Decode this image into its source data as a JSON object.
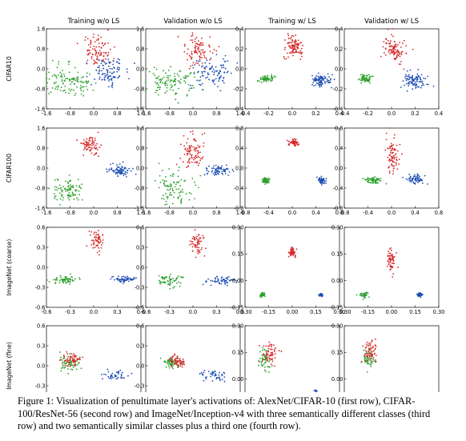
{
  "figure": {
    "column_titles": [
      "Training w/o LS",
      "Validation w/o LS",
      "Training w/ LS",
      "Validation w/ LS"
    ],
    "row_labels": [
      "CIFAR10",
      "CIFAR100",
      "ImageNet (coarse)",
      "ImageNet (fine)"
    ],
    "class_colors": {
      "red": "#d62728",
      "green": "#2ca02c",
      "blue": "#1f4fb4"
    },
    "caption": "Figure 1: Visualization of penultimate layer's activations of: AlexNet/CIFAR-10 (first row), CIFAR-100/ResNet-56 (second row) and ImageNet/Inception-v4 with three semantically different classes (third row) and two semantically similar classes plus a third one (fourth row)."
  },
  "chart_data": [
    {
      "type": "scatter",
      "row": "CIFAR10",
      "column": "Training w/o LS",
      "xlim": [
        -1.6,
        1.6
      ],
      "ylim": [
        -1.6,
        1.6
      ],
      "xticks": [
        "-1.6",
        "-0.8",
        "0.0",
        "0.8",
        "1.6"
      ],
      "yticks": [
        "1.6",
        "0.8",
        "0.0",
        "-0.8",
        "-1.6"
      ],
      "clusters": [
        {
          "color": "red",
          "cx": 0.1,
          "cy": 0.7,
          "sx": 0.25,
          "sy": 0.35,
          "n": 90
        },
        {
          "color": "blue",
          "cx": 0.5,
          "cy": -0.1,
          "sx": 0.3,
          "sy": 0.25,
          "n": 100
        },
        {
          "color": "green",
          "cx": -0.9,
          "cy": -0.5,
          "sx": 0.45,
          "sy": 0.3,
          "n": 120
        }
      ]
    },
    {
      "type": "scatter",
      "row": "CIFAR10",
      "column": "Validation w/o LS",
      "xlim": [
        -1.6,
        1.6
      ],
      "ylim": [
        -1.6,
        1.6
      ],
      "xticks": [
        "-1.6",
        "-0.8",
        "0.0",
        "0.8",
        "1.6"
      ],
      "yticks": [
        "1.6",
        "0.8",
        "0.0",
        "-0.8",
        "-1.6"
      ],
      "clusters": [
        {
          "color": "red",
          "cx": 0.15,
          "cy": 0.7,
          "sx": 0.25,
          "sy": 0.35,
          "n": 90
        },
        {
          "color": "blue",
          "cx": 0.7,
          "cy": -0.15,
          "sx": 0.35,
          "sy": 0.3,
          "n": 100
        },
        {
          "color": "green",
          "cx": -0.8,
          "cy": -0.5,
          "sx": 0.45,
          "sy": 0.3,
          "n": 110
        }
      ]
    },
    {
      "type": "scatter",
      "row": "CIFAR10",
      "column": "Training w/ LS",
      "xlim": [
        -0.4,
        0.4
      ],
      "ylim": [
        -0.4,
        0.4
      ],
      "xticks": [
        "-0.4",
        "-0.2",
        "0.0",
        "0.2",
        "0.4"
      ],
      "yticks": [
        "0.4",
        "0.2",
        "0.0",
        "-0.2",
        "-0.4"
      ],
      "clusters": [
        {
          "color": "red",
          "cx": 0.02,
          "cy": 0.22,
          "sx": 0.04,
          "sy": 0.05,
          "n": 100
        },
        {
          "color": "blue",
          "cx": 0.24,
          "cy": -0.12,
          "sx": 0.04,
          "sy": 0.03,
          "n": 90
        },
        {
          "color": "green",
          "cx": -0.22,
          "cy": -0.1,
          "sx": 0.03,
          "sy": 0.02,
          "n": 60
        }
      ]
    },
    {
      "type": "scatter",
      "row": "CIFAR10",
      "column": "Validation w/ LS",
      "xlim": [
        -0.4,
        0.4
      ],
      "ylim": [
        -0.4,
        0.4
      ],
      "xticks": [
        "-0.4",
        "-0.2",
        "0.0",
        "0.2",
        "0.4"
      ],
      "yticks": [
        "0.4",
        "0.2",
        "0.0",
        "-0.2",
        "-0.4"
      ],
      "clusters": [
        {
          "color": "red",
          "cx": 0.02,
          "cy": 0.2,
          "sx": 0.05,
          "sy": 0.07,
          "n": 100
        },
        {
          "color": "blue",
          "cx": 0.2,
          "cy": -0.12,
          "sx": 0.05,
          "sy": 0.04,
          "n": 90
        },
        {
          "color": "green",
          "cx": -0.22,
          "cy": -0.1,
          "sx": 0.03,
          "sy": 0.02,
          "n": 60
        }
      ]
    },
    {
      "type": "scatter",
      "row": "CIFAR100",
      "column": "Training w/o LS",
      "xlim": [
        -1.6,
        1.6
      ],
      "ylim": [
        -1.6,
        1.6
      ],
      "xticks": [
        "-1.6",
        "-0.8",
        "0.0",
        "0.8",
        "1.6"
      ],
      "yticks": [
        "1.6",
        "0.8",
        "0.0",
        "-0.8",
        "-1.6"
      ],
      "clusters": [
        {
          "color": "red",
          "cx": -0.1,
          "cy": 0.9,
          "sx": 0.15,
          "sy": 0.2,
          "n": 80
        },
        {
          "color": "blue",
          "cx": 0.9,
          "cy": -0.1,
          "sx": 0.2,
          "sy": 0.12,
          "n": 80
        },
        {
          "color": "green",
          "cx": -0.9,
          "cy": -0.9,
          "sx": 0.25,
          "sy": 0.25,
          "n": 90
        }
      ]
    },
    {
      "type": "scatter",
      "row": "CIFAR100",
      "column": "Validation w/o LS",
      "xlim": [
        -1.6,
        1.6
      ],
      "ylim": [
        -1.6,
        1.6
      ],
      "xticks": [
        "-1.6",
        "-0.8",
        "0.0",
        "0.8",
        "1.6"
      ],
      "yticks": [
        "1.6",
        "0.8",
        "0.0",
        "-0.8",
        "-1.6"
      ],
      "clusters": [
        {
          "color": "red",
          "cx": 0.0,
          "cy": 0.6,
          "sx": 0.2,
          "sy": 0.35,
          "n": 90
        },
        {
          "color": "blue",
          "cx": 0.9,
          "cy": -0.1,
          "sx": 0.25,
          "sy": 0.12,
          "n": 70
        },
        {
          "color": "green",
          "cx": -0.6,
          "cy": -0.8,
          "sx": 0.35,
          "sy": 0.3,
          "n": 90
        }
      ]
    },
    {
      "type": "scatter",
      "row": "CIFAR100",
      "column": "Training w/ LS",
      "xlim": [
        -0.8,
        0.8
      ],
      "ylim": [
        -0.8,
        0.8
      ],
      "xticks": [
        "-0.8",
        "-0.4",
        "0.0",
        "0.4",
        "0.8"
      ],
      "yticks": [
        "0.8",
        "0.4",
        "0.0",
        "-0.4",
        "-0.8"
      ],
      "clusters": [
        {
          "color": "red",
          "cx": 0.02,
          "cy": 0.5,
          "sx": 0.04,
          "sy": 0.04,
          "n": 60
        },
        {
          "color": "blue",
          "cx": 0.5,
          "cy": -0.25,
          "sx": 0.03,
          "sy": 0.03,
          "n": 60
        },
        {
          "color": "green",
          "cx": -0.45,
          "cy": -0.25,
          "sx": 0.03,
          "sy": 0.03,
          "n": 60
        }
      ]
    },
    {
      "type": "scatter",
      "row": "CIFAR100",
      "column": "Validation w/ LS",
      "xlim": [
        -0.8,
        0.8
      ],
      "ylim": [
        -0.8,
        0.8
      ],
      "xticks": [
        "-0.8",
        "-0.4",
        "0.0",
        "0.4",
        "0.8"
      ],
      "yticks": [
        "0.8",
        "0.4",
        "0.0",
        "-0.4",
        "-0.8"
      ],
      "clusters": [
        {
          "color": "red",
          "cx": 0.02,
          "cy": 0.25,
          "sx": 0.05,
          "sy": 0.18,
          "n": 80
        },
        {
          "color": "blue",
          "cx": 0.4,
          "cy": -0.22,
          "sx": 0.08,
          "sy": 0.05,
          "n": 60
        },
        {
          "color": "green",
          "cx": -0.3,
          "cy": -0.25,
          "sx": 0.08,
          "sy": 0.04,
          "n": 60
        }
      ]
    },
    {
      "type": "scatter",
      "row": "ImageNet (coarse)",
      "column": "Training w/o LS",
      "xlim": [
        -0.6,
        0.6
      ],
      "ylim": [
        -0.6,
        0.6
      ],
      "xticks": [
        "-0.6",
        "-0.3",
        "0.0",
        "0.3",
        "0.6"
      ],
      "yticks": [
        "0.6",
        "0.3",
        "0.0",
        "-0.3",
        "-0.6"
      ],
      "clusters": [
        {
          "color": "red",
          "cx": 0.05,
          "cy": 0.4,
          "sx": 0.04,
          "sy": 0.08,
          "n": 60
        },
        {
          "color": "blue",
          "cx": 0.4,
          "cy": -0.18,
          "sx": 0.08,
          "sy": 0.02,
          "n": 60
        },
        {
          "color": "green",
          "cx": -0.35,
          "cy": -0.2,
          "sx": 0.08,
          "sy": 0.03,
          "n": 60
        }
      ]
    },
    {
      "type": "scatter",
      "row": "ImageNet (coarse)",
      "column": "Validation w/o LS",
      "xlim": [
        -0.6,
        0.6
      ],
      "ylim": [
        -0.6,
        0.6
      ],
      "xticks": [
        "-0.6",
        "-0.3",
        "0.0",
        "0.3",
        "0.6"
      ],
      "yticks": [
        "0.6",
        "0.3",
        "0.0",
        "-0.3",
        "-0.6"
      ],
      "clusters": [
        {
          "color": "red",
          "cx": 0.05,
          "cy": 0.35,
          "sx": 0.05,
          "sy": 0.09,
          "n": 60
        },
        {
          "color": "blue",
          "cx": 0.4,
          "cy": -0.2,
          "sx": 0.1,
          "sy": 0.03,
          "n": 60
        },
        {
          "color": "green",
          "cx": -0.3,
          "cy": -0.2,
          "sx": 0.08,
          "sy": 0.04,
          "n": 60
        }
      ]
    },
    {
      "type": "scatter",
      "row": "ImageNet (coarse)",
      "column": "Training w/ LS",
      "xlim": [
        -0.3,
        0.3
      ],
      "ylim": [
        -0.15,
        0.3
      ],
      "xticks": [
        "-0.30",
        "-0.15",
        "0.00",
        "0.15",
        "0.30"
      ],
      "yticks": [
        "0.30",
        "0.15",
        "0.00",
        "-0.15"
      ],
      "clusters": [
        {
          "color": "red",
          "cx": 0.0,
          "cy": 0.16,
          "sx": 0.01,
          "sy": 0.015,
          "n": 50
        },
        {
          "color": "blue",
          "cx": 0.18,
          "cy": -0.08,
          "sx": 0.006,
          "sy": 0.004,
          "n": 40
        },
        {
          "color": "green",
          "cx": -0.19,
          "cy": -0.08,
          "sx": 0.008,
          "sy": 0.006,
          "n": 40
        }
      ]
    },
    {
      "type": "scatter",
      "row": "ImageNet (coarse)",
      "column": "Validation w/ LS",
      "xlim": [
        -0.3,
        0.3
      ],
      "ylim": [
        -0.15,
        0.3
      ],
      "xticks": [
        "-0.30",
        "-0.15",
        "0.00",
        "0.15",
        "0.30"
      ],
      "yticks": [
        "0.30",
        "0.15",
        "0.00",
        "-0.15"
      ],
      "clusters": [
        {
          "color": "red",
          "cx": 0.0,
          "cy": 0.12,
          "sx": 0.012,
          "sy": 0.035,
          "n": 60
        },
        {
          "color": "blue",
          "cx": 0.18,
          "cy": -0.08,
          "sx": 0.008,
          "sy": 0.005,
          "n": 40
        },
        {
          "color": "green",
          "cx": -0.17,
          "cy": -0.08,
          "sx": 0.015,
          "sy": 0.008,
          "n": 40
        }
      ]
    },
    {
      "type": "scatter",
      "row": "ImageNet (fine)",
      "column": "Training w/o LS",
      "xlim": [
        -0.6,
        0.6
      ],
      "ylim": [
        -0.6,
        0.6
      ],
      "xticks": [
        "-0.6",
        "-0.3",
        "0.0",
        "0.3",
        "0.6"
      ],
      "yticks": [
        "0.6",
        "0.3",
        "0.0",
        "-0.3",
        "-0.6"
      ],
      "clusters": [
        {
          "color": "green",
          "cx": -0.32,
          "cy": 0.05,
          "sx": 0.07,
          "sy": 0.06,
          "n": 60
        },
        {
          "color": "red",
          "cx": -0.28,
          "cy": 0.1,
          "sx": 0.06,
          "sy": 0.05,
          "n": 60
        },
        {
          "color": "blue",
          "cx": 0.3,
          "cy": -0.15,
          "sx": 0.08,
          "sy": 0.03,
          "n": 40
        }
      ]
    },
    {
      "type": "scatter",
      "row": "ImageNet (fine)",
      "column": "Validation w/o LS",
      "xlim": [
        -0.6,
        0.6
      ],
      "ylim": [
        -0.6,
        0.6
      ],
      "xticks": [
        "-0.6",
        "-0.3",
        "0.0",
        "0.3",
        "0.6"
      ],
      "yticks": [
        "0.6",
        "0.3",
        "0.0",
        "-0.3",
        "-0.6"
      ],
      "clusters": [
        {
          "color": "green",
          "cx": -0.25,
          "cy": 0.05,
          "sx": 0.06,
          "sy": 0.04,
          "n": 60
        },
        {
          "color": "red",
          "cx": -0.2,
          "cy": 0.07,
          "sx": 0.05,
          "sy": 0.04,
          "n": 60
        },
        {
          "color": "blue",
          "cx": 0.25,
          "cy": -0.15,
          "sx": 0.12,
          "sy": 0.04,
          "n": 45
        }
      ]
    },
    {
      "type": "scatter",
      "row": "ImageNet (fine)",
      "column": "Training w/ LS",
      "xlim": [
        -0.3,
        0.3
      ],
      "ylim": [
        -0.15,
        0.3
      ],
      "xticks": [
        "-0.30",
        "-0.15",
        "0.00",
        "0.15",
        "0.30"
      ],
      "yticks": [
        "0.30",
        "0.15",
        "0.00",
        "-0.15"
      ],
      "clusters": [
        {
          "color": "green",
          "cx": -0.18,
          "cy": 0.1,
          "sx": 0.02,
          "sy": 0.03,
          "n": 50
        },
        {
          "color": "red",
          "cx": -0.14,
          "cy": 0.14,
          "sx": 0.025,
          "sy": 0.03,
          "n": 60
        },
        {
          "color": "blue",
          "cx": 0.15,
          "cy": -0.08,
          "sx": 0.004,
          "sy": 0.01,
          "n": 25
        }
      ]
    },
    {
      "type": "scatter",
      "row": "ImageNet (fine)",
      "column": "Validation w/ LS",
      "xlim": [
        -0.3,
        0.3
      ],
      "ylim": [
        -0.15,
        0.3
      ],
      "xticks": [
        "-0.30",
        "-0.15",
        "0.00",
        "0.15",
        "0.30"
      ],
      "yticks": [
        "0.30",
        "0.15",
        "0.00",
        "-0.15"
      ],
      "clusters": [
        {
          "color": "green",
          "cx": -0.15,
          "cy": 0.12,
          "sx": 0.02,
          "sy": 0.03,
          "n": 50
        },
        {
          "color": "red",
          "cx": -0.13,
          "cy": 0.15,
          "sx": 0.02,
          "sy": 0.03,
          "n": 60
        },
        {
          "color": "blue",
          "cx": 0.16,
          "cy": -0.09,
          "sx": 0.015,
          "sy": 0.01,
          "n": 25
        }
      ]
    }
  ]
}
